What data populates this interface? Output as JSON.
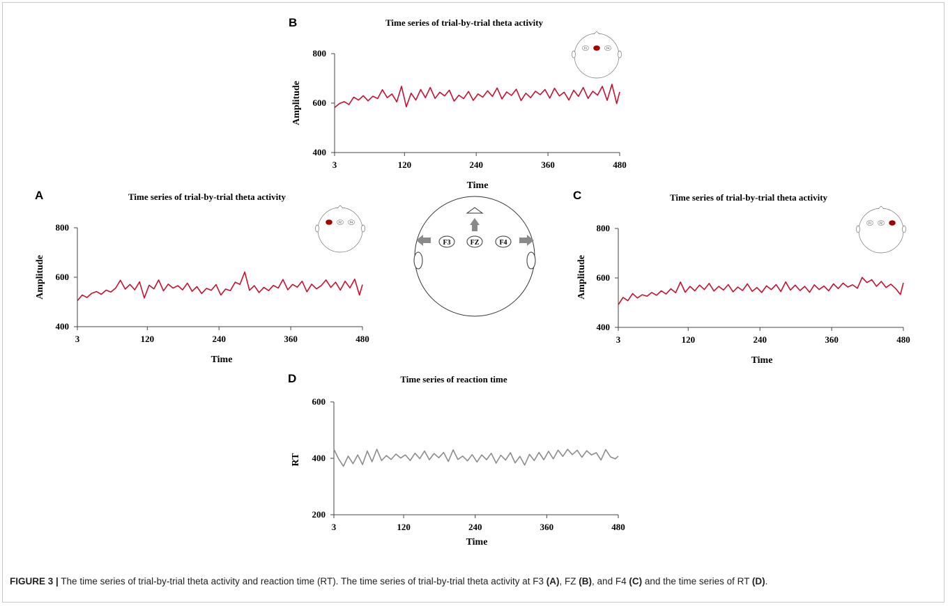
{
  "chart_data": [
    {
      "panel": "A",
      "type": "line",
      "title": "Time series of trial-by-trial theta activity",
      "xlabel": "Time",
      "ylabel": "Amplitude",
      "xlim": [
        3,
        480
      ],
      "ylim": [
        400,
        800
      ],
      "xticks": [
        "3",
        "120",
        "240",
        "360",
        "480"
      ],
      "yticks": [
        "400",
        "600",
        "800"
      ],
      "color": "#c8102e",
      "electrodes": [
        "F3",
        "FZ",
        "F4"
      ],
      "highlight": "F3",
      "x": [
        3,
        11,
        19,
        27,
        35,
        43,
        51,
        59,
        67,
        75,
        83,
        91,
        99,
        107,
        115,
        123,
        131,
        139,
        147,
        155,
        163,
        171,
        179,
        187,
        195,
        203,
        211,
        219,
        227,
        235,
        243,
        251,
        259,
        267,
        275,
        283,
        291,
        299,
        307,
        315,
        323,
        331,
        339,
        347,
        355,
        363,
        371,
        379,
        387,
        395,
        403,
        411,
        419,
        427,
        435,
        443,
        451,
        459,
        467,
        475,
        480
      ],
      "y": [
        505,
        528,
        518,
        535,
        542,
        531,
        548,
        540,
        556,
        588,
        552,
        571,
        549,
        581,
        516,
        568,
        553,
        589,
        545,
        572,
        556,
        566,
        549,
        576,
        543,
        562,
        534,
        555,
        547,
        570,
        528,
        552,
        546,
        580,
        571,
        621,
        547,
        566,
        538,
        559,
        546,
        567,
        556,
        591,
        549,
        571,
        560,
        584,
        541,
        572,
        553,
        566,
        589,
        559,
        580,
        548,
        584,
        557,
        592,
        528,
        570
      ],
      "grid": false
    },
    {
      "panel": "B",
      "type": "line",
      "title": "Time series of trial-by-trial theta activity",
      "xlabel": "Time",
      "ylabel": "Amplitude",
      "xlim": [
        3,
        480
      ],
      "ylim": [
        400,
        800
      ],
      "xticks": [
        "3",
        "120",
        "240",
        "360",
        "480"
      ],
      "yticks": [
        "400",
        "600",
        "800"
      ],
      "color": "#c8102e",
      "electrodes": [
        "F3",
        "FZ",
        "F4"
      ],
      "highlight": "FZ",
      "x": [
        3,
        11,
        19,
        27,
        35,
        43,
        51,
        59,
        67,
        75,
        83,
        91,
        99,
        107,
        115,
        123,
        131,
        139,
        147,
        155,
        163,
        171,
        179,
        187,
        195,
        203,
        211,
        219,
        227,
        235,
        243,
        251,
        259,
        267,
        275,
        283,
        291,
        299,
        307,
        315,
        323,
        331,
        339,
        347,
        355,
        363,
        371,
        379,
        387,
        395,
        403,
        411,
        419,
        427,
        435,
        443,
        451,
        459,
        467,
        475,
        480
      ],
      "y": [
        582,
        598,
        606,
        594,
        624,
        612,
        630,
        609,
        628,
        618,
        654,
        622,
        637,
        605,
        668,
        585,
        640,
        612,
        655,
        622,
        663,
        619,
        644,
        629,
        652,
        608,
        632,
        618,
        647,
        611,
        637,
        624,
        650,
        627,
        661,
        617,
        645,
        631,
        656,
        610,
        640,
        622,
        648,
        634,
        655,
        620,
        660,
        629,
        644,
        612,
        652,
        627,
        663,
        619,
        648,
        632,
        668,
        611,
        676,
        598,
        645
      ],
      "grid": false
    },
    {
      "panel": "C",
      "type": "line",
      "title": "Time series of trial-by-trial theta activity",
      "xlabel": "Time",
      "ylabel": "Amplitude",
      "xlim": [
        3,
        480
      ],
      "ylim": [
        400,
        800
      ],
      "xticks": [
        "3",
        "120",
        "240",
        "360",
        "480"
      ],
      "yticks": [
        "400",
        "600",
        "800"
      ],
      "color": "#c8102e",
      "electrodes": [
        "F3",
        "FZ",
        "F4"
      ],
      "highlight": "F4",
      "x": [
        3,
        11,
        19,
        27,
        35,
        43,
        51,
        59,
        67,
        75,
        83,
        91,
        99,
        107,
        115,
        123,
        131,
        139,
        147,
        155,
        163,
        171,
        179,
        187,
        195,
        203,
        211,
        219,
        227,
        235,
        243,
        251,
        259,
        267,
        275,
        283,
        291,
        299,
        307,
        315,
        323,
        331,
        339,
        347,
        355,
        363,
        371,
        379,
        387,
        395,
        403,
        411,
        419,
        427,
        435,
        443,
        451,
        459,
        467,
        475,
        480
      ],
      "y": [
        492,
        521,
        508,
        537,
        519,
        532,
        526,
        541,
        530,
        548,
        535,
        556,
        540,
        583,
        542,
        566,
        548,
        571,
        553,
        578,
        547,
        566,
        551,
        573,
        544,
        563,
        549,
        576,
        546,
        561,
        541,
        568,
        553,
        573,
        545,
        584,
        551,
        571,
        549,
        566,
        542,
        572,
        553,
        567,
        548,
        576,
        557,
        579,
        563,
        572,
        558,
        602,
        581,
        593,
        566,
        586,
        561,
        575,
        557,
        533,
        580
      ],
      "grid": false
    },
    {
      "panel": "D",
      "type": "line",
      "title": "Time series of reaction time",
      "xlabel": "Time",
      "ylabel": "RT",
      "xlim": [
        3,
        480
      ],
      "ylim": [
        200,
        600
      ],
      "xticks": [
        "3",
        "120",
        "240",
        "360",
        "480"
      ],
      "yticks": [
        "200",
        "400",
        "600"
      ],
      "color": "#8c8c8c",
      "x": [
        3,
        11,
        19,
        27,
        35,
        43,
        51,
        59,
        67,
        75,
        83,
        91,
        99,
        107,
        115,
        123,
        131,
        139,
        147,
        155,
        163,
        171,
        179,
        187,
        195,
        203,
        211,
        219,
        227,
        235,
        243,
        251,
        259,
        267,
        275,
        283,
        291,
        299,
        307,
        315,
        323,
        331,
        339,
        347,
        355,
        363,
        371,
        379,
        387,
        395,
        403,
        411,
        419,
        427,
        435,
        443,
        451,
        459,
        467,
        475,
        480
      ],
      "y": [
        432,
        398,
        372,
        408,
        381,
        412,
        378,
        426,
        388,
        432,
        392,
        410,
        396,
        415,
        401,
        412,
        392,
        418,
        399,
        426,
        395,
        417,
        402,
        421,
        389,
        430,
        396,
        408,
        391,
        413,
        387,
        412,
        395,
        418,
        383,
        411,
        394,
        420,
        384,
        407,
        376,
        414,
        392,
        421,
        395,
        425,
        398,
        429,
        407,
        432,
        413,
        429,
        404,
        427,
        412,
        420,
        394,
        431,
        405,
        398,
        408
      ],
      "grid": false
    }
  ],
  "panels": {
    "a": {
      "letter": "A",
      "title": "Time series of trial-by-trial theta activity",
      "ylabel": "Amplitude",
      "xlabel": "Time"
    },
    "b": {
      "letter": "B",
      "title": "Time series of trial-by-trial theta activity",
      "ylabel": "Amplitude",
      "xlabel": "Time"
    },
    "c": {
      "letter": "C",
      "title": "Time series of trial-by-trial theta activity",
      "ylabel": "Amplitude",
      "xlabel": "Time"
    },
    "d": {
      "letter": "D",
      "title": "Time series of reaction time",
      "ylabel": "RT",
      "xlabel": "Time"
    }
  },
  "center_head": {
    "electrodes": [
      "F3",
      "FZ",
      "F4"
    ]
  },
  "caption": {
    "figure_label": "FIGURE 3 |",
    "text_1": " The time series of trial-by-trial theta activity and reaction time (RT). The time series of trial-by-trial theta activity at F3 ",
    "ref_a": "(A)",
    "text_2": ", FZ ",
    "ref_b": "(B)",
    "text_3": ", and F4 ",
    "ref_c": "(C)",
    "text_4": " and the time series of RT ",
    "ref_d": "(D)",
    "text_5": "."
  },
  "colors": {
    "theta": "#c8102e",
    "rt": "#8c8c8c",
    "highlight_dot": "#a30000",
    "arrow": "#8a8a8a"
  }
}
